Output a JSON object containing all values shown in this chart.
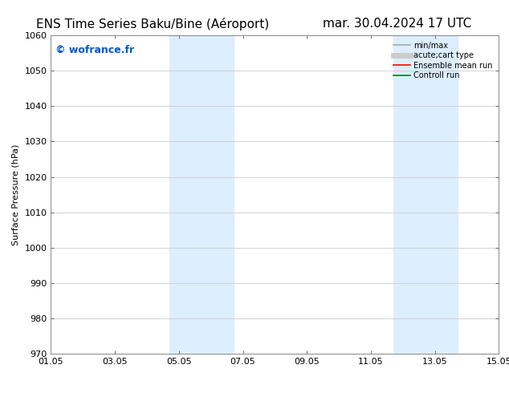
{
  "title_left": "ENS Time Series Baku/Bine (Aéroport)",
  "title_right": "mar. 30.04.2024 17 UTC",
  "ylabel": "Surface Pressure (hPa)",
  "ylim": [
    970,
    1060
  ],
  "yticks": [
    970,
    980,
    990,
    1000,
    1010,
    1020,
    1030,
    1040,
    1050,
    1060
  ],
  "xlim_start": 0,
  "xlim_end": 14,
  "xtick_labels": [
    "01.05",
    "03.05",
    "05.05",
    "07.05",
    "09.05",
    "11.05",
    "13.05",
    "15.05"
  ],
  "xtick_positions": [
    0,
    2,
    4,
    6,
    8,
    10,
    12,
    14
  ],
  "shaded_regions": [
    {
      "x_start": 3.7,
      "x_end": 5.7,
      "color": "#ddeeff"
    },
    {
      "x_start": 10.7,
      "x_end": 12.7,
      "color": "#ddeeff"
    }
  ],
  "watermark_text": "© wofrance.fr",
  "watermark_color": "#0055cc",
  "watermark_fontsize": 9,
  "legend_entries": [
    {
      "label": "min/max",
      "color": "#aaaaaa",
      "lw": 1.2
    },
    {
      "label": "acute;cart type",
      "color": "#cccccc",
      "lw": 5
    },
    {
      "label": "Ensemble mean run",
      "color": "#ff0000",
      "lw": 1.2
    },
    {
      "label": "Controll run",
      "color": "#008000",
      "lw": 1.2
    }
  ],
  "bg_color": "#ffffff",
  "grid_color": "#cccccc",
  "title_fontsize": 11,
  "axis_fontsize": 8,
  "tick_fontsize": 8
}
